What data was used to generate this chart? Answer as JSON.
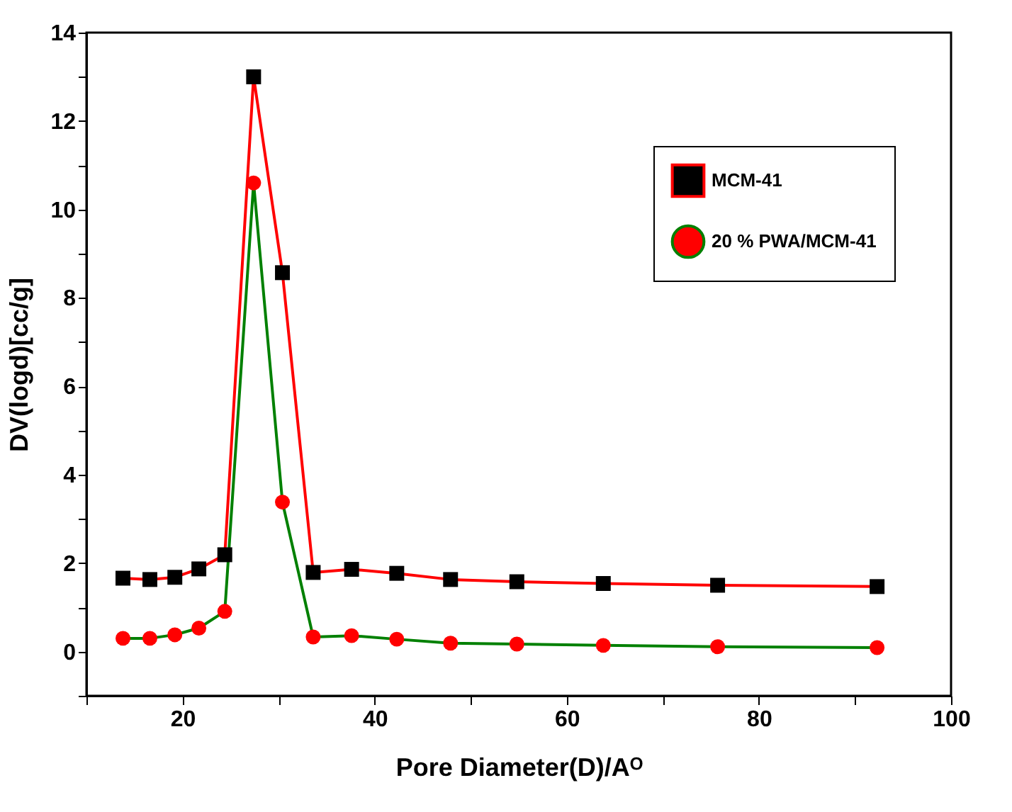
{
  "chart_data": {
    "type": "line",
    "xlabel": "Pore Diameter(D)/Aᴼ",
    "ylabel": "DV(logd)[cc/g]",
    "x": [
      13.8,
      16.6,
      19.2,
      21.7,
      24.4,
      27.4,
      30.4,
      33.6,
      37.6,
      42.3,
      47.9,
      54.8,
      63.8,
      75.7,
      92.3
    ],
    "series": [
      {
        "name": "MCM-41",
        "color": "#ff0000",
        "marker": "square",
        "colors": [
          "#000000",
          "#000000",
          "#000000",
          "#000000",
          "#000000",
          "#000000",
          "#000000",
          "#000000",
          "#000000",
          "#000000",
          "#000000",
          "#000000",
          "#000000",
          "#000000",
          "#000000"
        ],
        "values": [
          1.66,
          1.63,
          1.68,
          1.87,
          2.19,
          13.0,
          8.57,
          1.79,
          1.86,
          1.77,
          1.63,
          1.58,
          1.54,
          1.5,
          1.47
        ]
      },
      {
        "name": "20 % PWA/MCM-41",
        "color": "#008000",
        "marker": "circle",
        "colors": [
          "#ff0000",
          "#ff0000",
          "#ff0000",
          "#ff0000",
          "#ff0000",
          "#ff0000",
          "#ff0000",
          "#ff0000",
          "#ff0000",
          "#ff0000",
          "#ff0000",
          "#ff0000",
          "#ff0000",
          "#ff0000",
          "#ff0000"
        ],
        "values": [
          0.3,
          0.3,
          0.38,
          0.53,
          0.91,
          10.6,
          3.38,
          0.33,
          0.36,
          0.28,
          0.19,
          0.17,
          0.14,
          0.11,
          0.09
        ]
      }
    ],
    "xlim": [
      10,
      100
    ],
    "ylim": [
      -1,
      14
    ],
    "xticks": [
      {
        "value": 10,
        "label": null
      },
      20,
      {
        "value": 30,
        "label": null
      },
      40,
      {
        "value": 50,
        "label": null
      },
      60,
      {
        "value": 70,
        "label": null
      },
      80,
      {
        "value": 90,
        "label": null
      },
      100
    ],
    "yticks": [
      {
        "value": -1,
        "label": null
      },
      0,
      {
        "value": 1,
        "label": null
      },
      2,
      {
        "value": 3,
        "label": null
      },
      4,
      {
        "value": 5,
        "label": null
      },
      6,
      {
        "value": 7,
        "label": null
      },
      8,
      {
        "value": 9,
        "label": null
      },
      10,
      {
        "value": 11,
        "label": null
      },
      12,
      {
        "value": 13,
        "label": null
      },
      14
    ],
    "legend": "top right",
    "grid": false,
    "line_style": "solid"
  }
}
